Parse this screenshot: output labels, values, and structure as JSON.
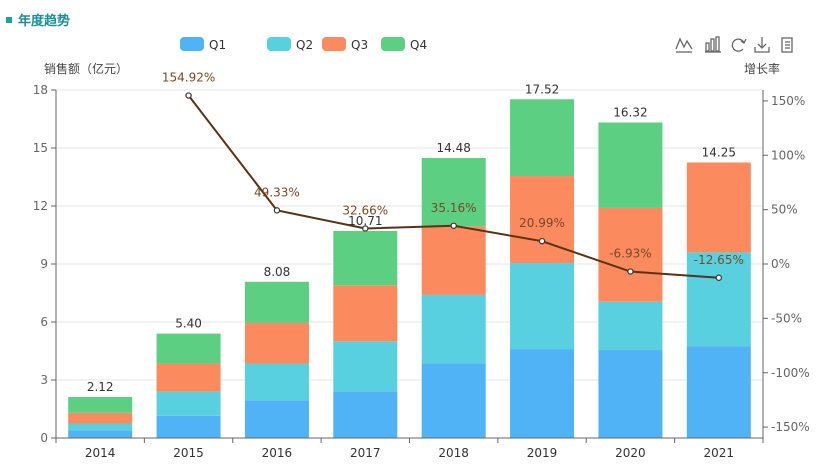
{
  "title": "年度趋势",
  "toolbar": {
    "icons": [
      "line-chart-icon",
      "bar-chart-icon",
      "restore-icon",
      "download-icon",
      "data-view-icon"
    ]
  },
  "colors": {
    "Q1": "#4fb3f6",
    "Q2": "#58d0df",
    "Q3": "#fb8a5e",
    "Q4": "#5ccf82",
    "growth_line": "#5a3216",
    "axis": "#666666",
    "grid": "#e6e6e6"
  },
  "chart_data": {
    "type": "bar",
    "stacked": true,
    "categories": [
      "2014",
      "2015",
      "2016",
      "2017",
      "2018",
      "2019",
      "2020",
      "2021"
    ],
    "series": [
      {
        "name": "Q1",
        "type": "bar",
        "values": [
          0.4,
          1.15,
          1.95,
          2.4,
          3.85,
          4.6,
          4.55,
          4.75
        ]
      },
      {
        "name": "Q2",
        "type": "bar",
        "values": [
          0.35,
          1.25,
          1.9,
          2.6,
          3.55,
          4.45,
          2.5,
          4.85
        ]
      },
      {
        "name": "Q3",
        "type": "bar",
        "values": [
          0.55,
          1.45,
          2.1,
          2.9,
          3.55,
          4.5,
          4.85,
          4.65
        ]
      },
      {
        "name": "Q4",
        "type": "bar",
        "values": [
          0.82,
          1.55,
          2.13,
          2.81,
          3.53,
          3.97,
          4.42,
          0
        ]
      },
      {
        "type": "line",
        "axis": "right",
        "x": [
          "2015",
          "2016",
          "2017",
          "2018",
          "2019",
          "2020",
          "2021"
        ],
        "values": [
          154.92,
          49.33,
          32.66,
          35.16,
          20.99,
          -6.93,
          -12.65
        ]
      }
    ],
    "totals": [
      2.12,
      5.4,
      8.08,
      10.71,
      14.48,
      17.52,
      16.32,
      14.25
    ],
    "total_labels": [
      "2.12",
      "5.40",
      "8.08",
      "10.71",
      "14.48",
      "17.52",
      "16.32",
      "14.25"
    ],
    "growth_labels": [
      "154.92%",
      "49.33%",
      "32.66%",
      "35.16%",
      "20.99%",
      "-6.93%",
      "-12.65%"
    ],
    "ylabel": "销售额（亿元）",
    "y2label": "增长率",
    "ylim": [
      0,
      18
    ],
    "yticks": [
      0,
      3,
      6,
      9,
      12,
      15,
      18
    ],
    "y2lim": [
      -160,
      160
    ],
    "y2ticks": [
      -150,
      -100,
      -50,
      0,
      50,
      100,
      150
    ],
    "y2tick_labels": [
      "-150%",
      "-100%",
      "-50%",
      "0%",
      "50%",
      "100%",
      "150%"
    ],
    "legend": [
      "Q1",
      "Q2",
      "Q3",
      "Q4"
    ],
    "legend_position": "top-center",
    "grid": true
  }
}
